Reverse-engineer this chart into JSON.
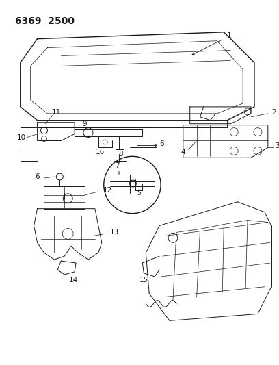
{
  "title": "6369  2500",
  "bg_color": "#ffffff",
  "line_color": "#1a1a1a",
  "title_fontsize": 10,
  "label_fontsize": 7.5,
  "figsize": [
    4.08,
    5.33
  ],
  "dpi": 100
}
